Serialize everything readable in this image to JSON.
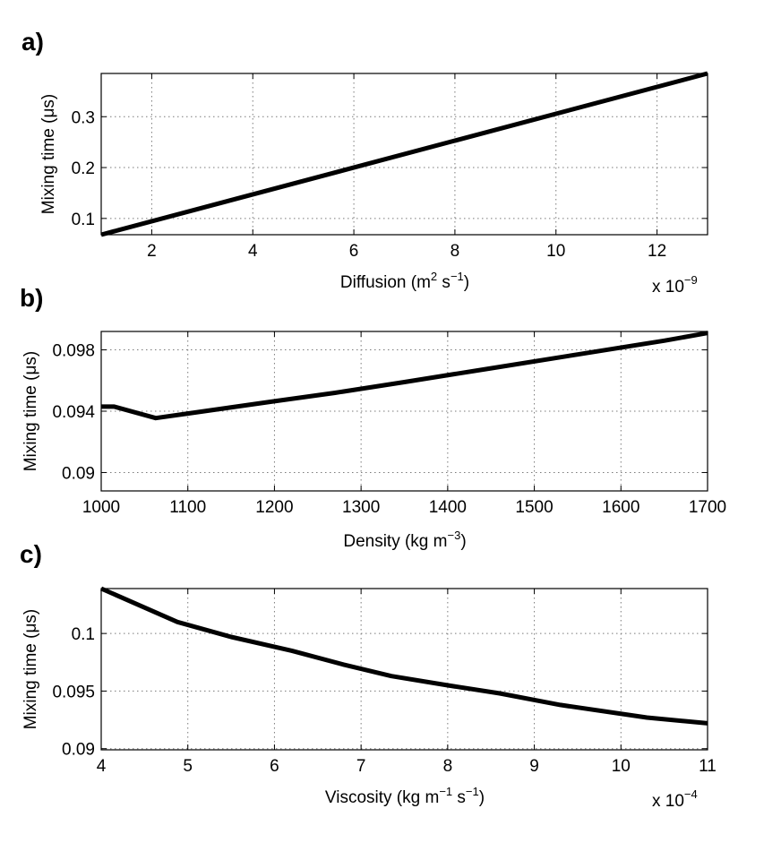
{
  "chart_data": [
    {
      "type": "line",
      "panel": "a)",
      "xlabel": "Diffusion (m",
      "xlabel_sup": "2",
      "xlabel_mid": " s",
      "xlabel_sup2": "−1",
      "xlabel_end": ")",
      "ylabel": "Mixing time (μs)",
      "x_multiplier_base": "x 10",
      "x_multiplier_exp": "−9",
      "xlim": [
        1,
        13
      ],
      "ylim": [
        0.068,
        0.385
      ],
      "xticks": [
        2,
        4,
        6,
        8,
        10,
        12
      ],
      "xtick_labels": [
        "2",
        "4",
        "6",
        "8",
        "10",
        "12"
      ],
      "yticks": [
        0.1,
        0.2,
        0.3
      ],
      "ytick_labels": [
        "0.1",
        "0.2",
        "0.3"
      ],
      "series": [
        {
          "name": "mixing time",
          "x": [
            1,
            13
          ],
          "y": [
            0.068,
            0.385
          ]
        }
      ]
    },
    {
      "type": "line",
      "panel": "b)",
      "xlabel": "Density (kg m",
      "xlabel_sup": "−3",
      "xlabel_mid": "",
      "xlabel_sup2": "",
      "xlabel_end": ")",
      "ylabel": "Mixing time (μs)",
      "x_multiplier_base": "",
      "x_multiplier_exp": "",
      "xlim": [
        1000,
        1700
      ],
      "ylim": [
        0.0888,
        0.0992
      ],
      "xticks": [
        1000,
        1100,
        1200,
        1300,
        1400,
        1500,
        1600,
        1700
      ],
      "xtick_labels": [
        "1000",
        "1100",
        "1200",
        "1300",
        "1400",
        "1500",
        "1600",
        "1700"
      ],
      "yticks": [
        0.09,
        0.094,
        0.098
      ],
      "ytick_labels": [
        "0.09",
        "0.094",
        "0.098"
      ],
      "series": [
        {
          "name": "mixing time",
          "x": [
            1000,
            1015,
            1063,
            1100,
            1200,
            1270,
            1350,
            1450,
            1550,
            1650,
            1700
          ],
          "y": [
            0.0943,
            0.0943,
            0.09355,
            0.09385,
            0.09465,
            0.0952,
            0.0959,
            0.0968,
            0.0977,
            0.0986,
            0.0991
          ]
        }
      ]
    },
    {
      "type": "line",
      "panel": "c)",
      "xlabel": "Viscosity (kg m",
      "xlabel_sup": "−1",
      "xlabel_mid": " s",
      "xlabel_sup2": "−1",
      "xlabel_end": ")",
      "ylabel": "Mixing time (μs)",
      "x_multiplier_base": "x 10",
      "x_multiplier_exp": "−4",
      "xlim": [
        4,
        11
      ],
      "ylim": [
        0.0899,
        0.1039
      ],
      "xticks": [
        4,
        5,
        6,
        7,
        8,
        9,
        10,
        11
      ],
      "xtick_labels": [
        "4",
        "5",
        "6",
        "7",
        "8",
        "9",
        "10",
        "11"
      ],
      "yticks": [
        0.09,
        0.095,
        0.1
      ],
      "ytick_labels": [
        "0.09",
        "0.095",
        "0.1"
      ],
      "series": [
        {
          "name": "mixing time",
          "x": [
            4,
            4.88,
            5.5,
            6.2,
            6.8,
            7.35,
            8,
            8.6,
            9.3,
            10.3,
            11
          ],
          "y": [
            0.1039,
            0.101,
            0.0997,
            0.0985,
            0.0973,
            0.0963,
            0.0955,
            0.0948,
            0.0938,
            0.0927,
            0.0922
          ]
        }
      ]
    }
  ]
}
